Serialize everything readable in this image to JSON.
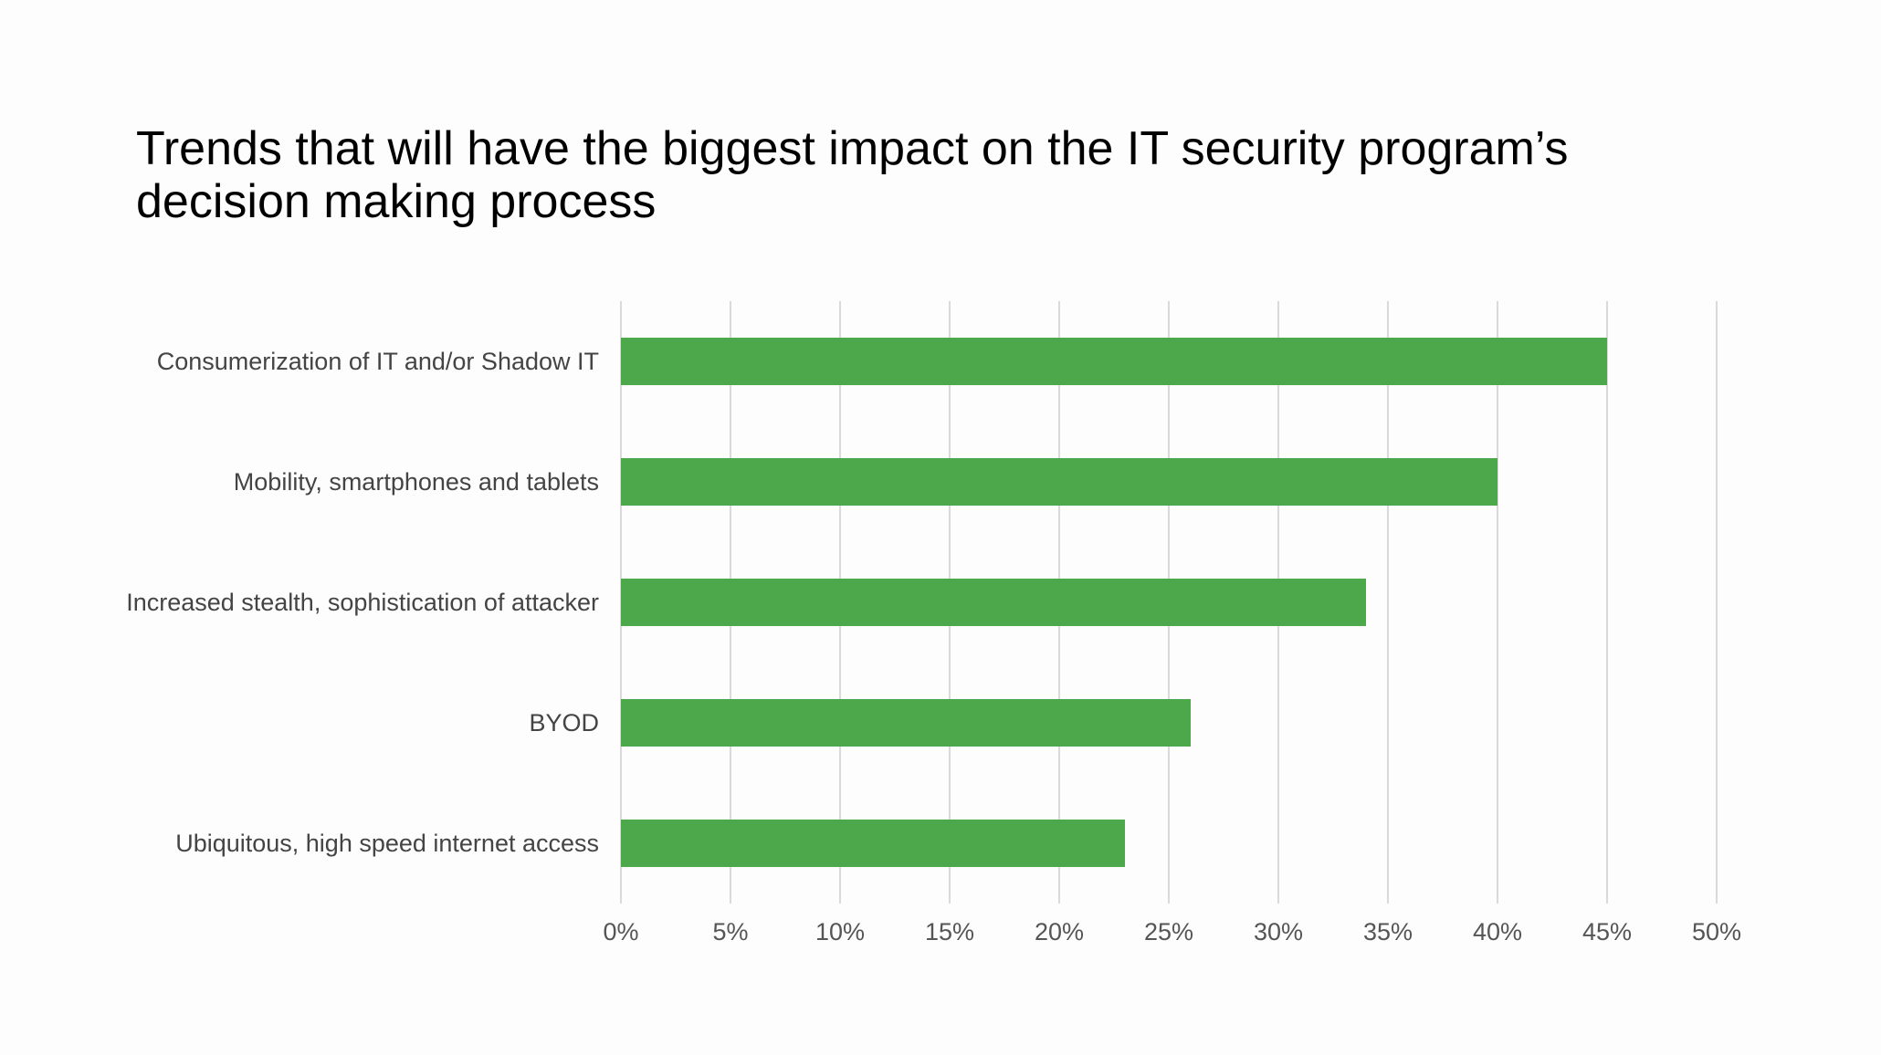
{
  "chart_data": {
    "type": "bar",
    "orientation": "horizontal",
    "title": "Trends that will have the biggest impact on the IT security program’s decision making process",
    "categories": [
      "Consumerization of IT and/or Shadow IT",
      "Mobility, smartphones and tablets",
      "Increased stealth, sophistication of attacker",
      "BYOD",
      "Ubiquitous, high speed internet access"
    ],
    "values": [
      45,
      40,
      34,
      26,
      23
    ],
    "xlim": [
      0,
      50
    ],
    "xticks": [
      0,
      5,
      10,
      15,
      20,
      25,
      30,
      35,
      40,
      45,
      50
    ],
    "tick_suffix": "%",
    "xlabel": "",
    "ylabel": "",
    "grid": true,
    "legend": "none",
    "bar_color": "#4ca84b",
    "grid_color": "#d9d9d9"
  }
}
